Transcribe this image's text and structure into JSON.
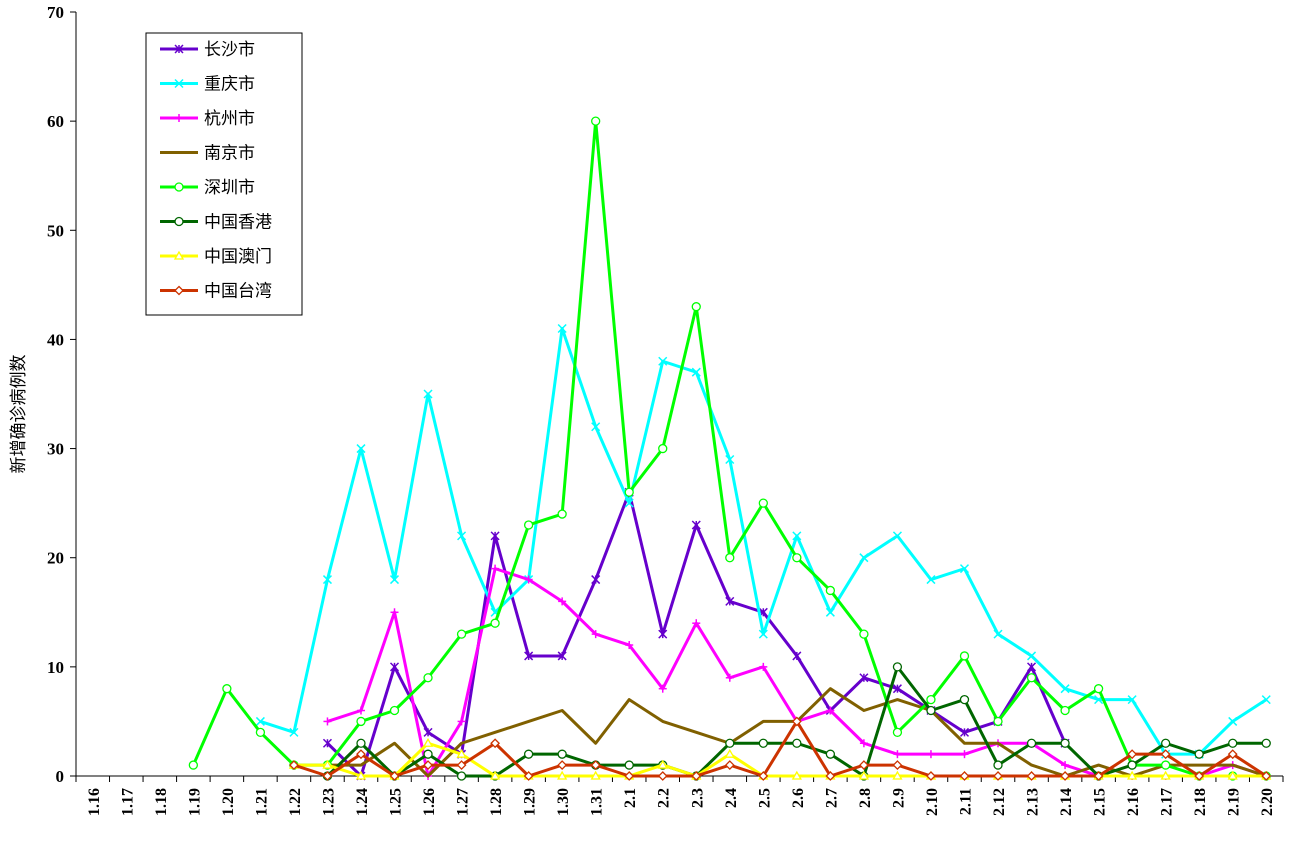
{
  "chart_data": {
    "type": "line",
    "title": "",
    "xlabel": "",
    "ylabel": "新增确诊病例数",
    "ylim": [
      0,
      70
    ],
    "yticks": [
      0,
      10,
      20,
      30,
      40,
      50,
      60,
      70
    ],
    "grid": false,
    "legend_position": "top-left",
    "x": [
      "1.16",
      "1.17",
      "1.18",
      "1.19",
      "1.20",
      "1.21",
      "1.22",
      "1.23",
      "1.24",
      "1.25",
      "1.26",
      "1.27",
      "1.28",
      "1.29",
      "1.30",
      "1.31",
      "2.1",
      "2.2",
      "2.3",
      "2.4",
      "2.5",
      "2.6",
      "2.7",
      "2.8",
      "2.9",
      "2.10",
      "2.11",
      "2.12",
      "2.13",
      "2.14",
      "2.15",
      "2.16",
      "2.17",
      "2.18",
      "2.19",
      "2.20"
    ],
    "series": [
      {
        "name": "长沙市",
        "color": "#6600cc",
        "marker": "star",
        "values": [
          null,
          null,
          null,
          null,
          null,
          null,
          null,
          3,
          0,
          10,
          4,
          2,
          22,
          11,
          11,
          18,
          26,
          13,
          23,
          16,
          15,
          11,
          6,
          9,
          8,
          6,
          4,
          5,
          10,
          3,
          null,
          null,
          null,
          null,
          null,
          null
        ]
      },
      {
        "name": "重庆市",
        "color": "#00ffff",
        "marker": "x",
        "values": [
          null,
          null,
          null,
          null,
          null,
          5,
          4,
          18,
          30,
          18,
          35,
          22,
          15,
          18,
          41,
          32,
          25,
          38,
          37,
          29,
          13,
          22,
          15,
          20,
          22,
          18,
          19,
          13,
          11,
          8,
          7,
          7,
          2,
          2,
          5,
          7
        ]
      },
      {
        "name": "杭州市",
        "color": "#ff00ff",
        "marker": "plus",
        "values": [
          null,
          null,
          null,
          null,
          null,
          null,
          null,
          5,
          6,
          15,
          0,
          5,
          19,
          18,
          16,
          13,
          12,
          8,
          14,
          9,
          10,
          5,
          6,
          3,
          2,
          2,
          2,
          3,
          3,
          1,
          0,
          0,
          0,
          0,
          1,
          0
        ]
      },
      {
        "name": "南京市",
        "color": "#806000",
        "marker": "none",
        "values": [
          null,
          null,
          null,
          null,
          null,
          null,
          null,
          1,
          1,
          3,
          0,
          3,
          4,
          5,
          6,
          3,
          7,
          5,
          4,
          3,
          5,
          5,
          8,
          6,
          7,
          6,
          3,
          3,
          1,
          0,
          1,
          0,
          1,
          1,
          1,
          0
        ]
      },
      {
        "name": "深圳市",
        "color": "#00ff00",
        "marker": "circle",
        "values": [
          null,
          null,
          null,
          1,
          8,
          4,
          1,
          1,
          5,
          6,
          9,
          13,
          14,
          23,
          24,
          60,
          26,
          30,
          43,
          20,
          25,
          20,
          17,
          13,
          4,
          7,
          11,
          5,
          9,
          6,
          8,
          1,
          1,
          0,
          0,
          0
        ]
      },
      {
        "name": "中国香港",
        "color": "#006600",
        "marker": "circle",
        "values": [
          null,
          null,
          null,
          null,
          null,
          null,
          null,
          0,
          3,
          0,
          2,
          0,
          0,
          2,
          2,
          1,
          1,
          1,
          0,
          3,
          3,
          3,
          2,
          0,
          10,
          6,
          7,
          1,
          3,
          3,
          0,
          1,
          3,
          2,
          3,
          3
        ]
      },
      {
        "name": "中国澳门",
        "color": "#ffff00",
        "marker": "triangle",
        "values": [
          null,
          null,
          null,
          null,
          null,
          null,
          1,
          1,
          0,
          0,
          3,
          2,
          0,
          0,
          0,
          0,
          0,
          1,
          0,
          2,
          0,
          0,
          0,
          0,
          0,
          0,
          0,
          0,
          0,
          0,
          0,
          0,
          0,
          0,
          0,
          0
        ]
      },
      {
        "name": "中国台湾",
        "color": "#cc3300",
        "marker": "diamond",
        "values": [
          null,
          null,
          null,
          null,
          null,
          null,
          1,
          0,
          2,
          0,
          1,
          1,
          3,
          0,
          1,
          1,
          0,
          0,
          0,
          1,
          0,
          5,
          0,
          1,
          1,
          0,
          0,
          0,
          0,
          0,
          0,
          2,
          2,
          0,
          2,
          0
        ]
      }
    ]
  }
}
